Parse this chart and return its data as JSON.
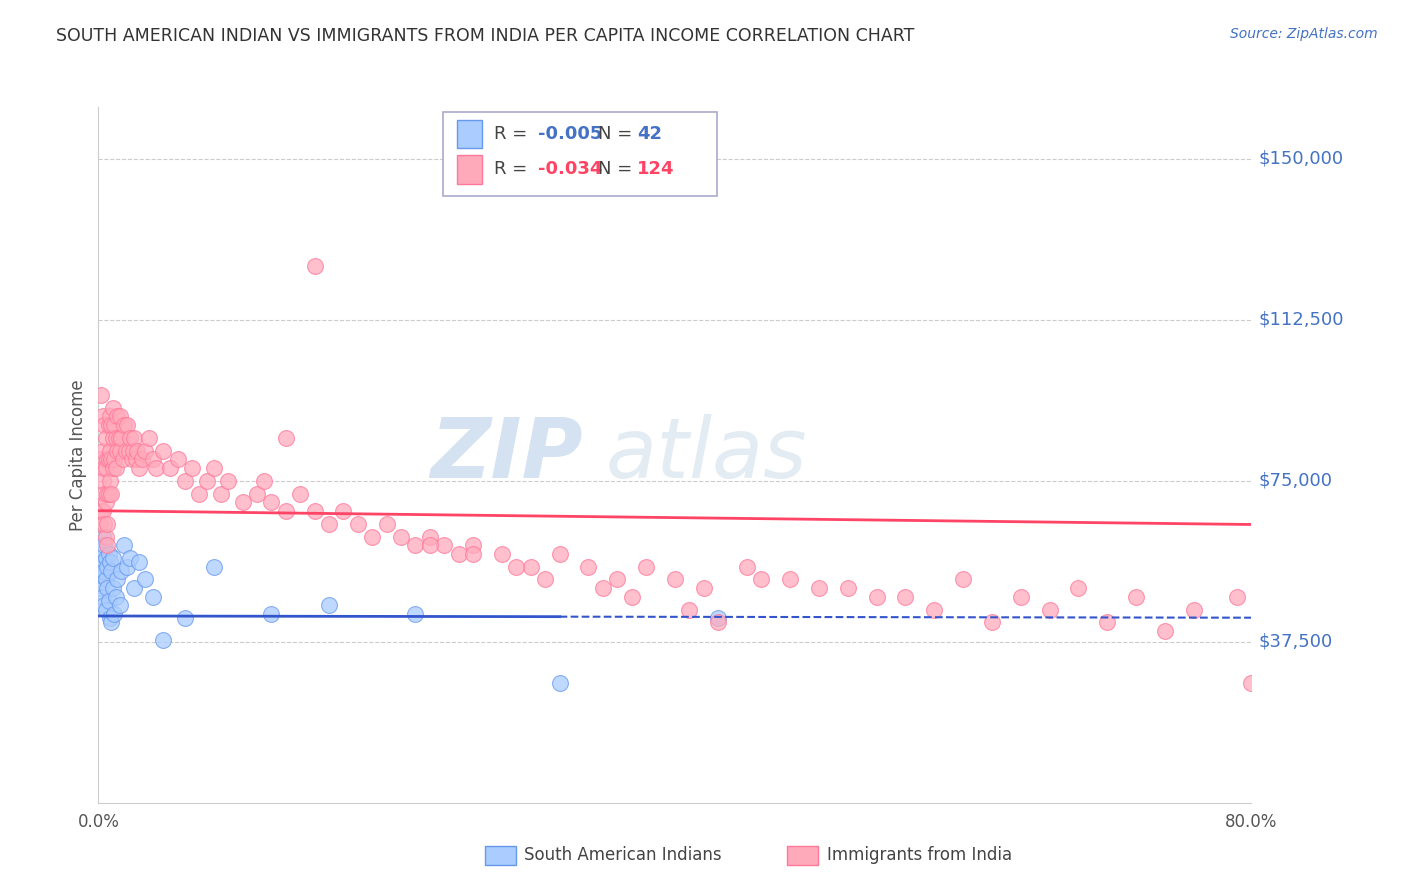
{
  "title": "SOUTH AMERICAN INDIAN VS IMMIGRANTS FROM INDIA PER CAPITA INCOME CORRELATION CHART",
  "source": "Source: ZipAtlas.com",
  "ylabel": "Per Capita Income",
  "yticks": [
    0,
    37500,
    75000,
    112500,
    150000
  ],
  "ytick_labels": [
    "",
    "$37,500",
    "$75,000",
    "$112,500",
    "$150,000"
  ],
  "ylim": [
    0,
    162000
  ],
  "xlim": [
    0.0,
    0.8
  ],
  "background_color": "#ffffff",
  "watermark_text": "ZIPatlas",
  "blue_x": [
    0.001,
    0.002,
    0.002,
    0.003,
    0.003,
    0.003,
    0.004,
    0.004,
    0.004,
    0.005,
    0.005,
    0.005,
    0.006,
    0.006,
    0.007,
    0.007,
    0.008,
    0.008,
    0.009,
    0.009,
    0.01,
    0.01,
    0.011,
    0.012,
    0.013,
    0.015,
    0.016,
    0.018,
    0.02,
    0.022,
    0.025,
    0.028,
    0.032,
    0.038,
    0.045,
    0.06,
    0.08,
    0.12,
    0.16,
    0.22,
    0.32,
    0.43
  ],
  "blue_y": [
    50000,
    58000,
    53000,
    62000,
    56000,
    48000,
    60000,
    54000,
    46000,
    57000,
    52000,
    45000,
    55000,
    50000,
    58000,
    47000,
    56000,
    43000,
    54000,
    42000,
    57000,
    50000,
    44000,
    48000,
    52000,
    46000,
    54000,
    60000,
    55000,
    57000,
    50000,
    56000,
    52000,
    48000,
    38000,
    43000,
    55000,
    44000,
    46000,
    44000,
    28000,
    43000
  ],
  "pink_x": [
    0.001,
    0.002,
    0.002,
    0.002,
    0.003,
    0.003,
    0.003,
    0.003,
    0.004,
    0.004,
    0.004,
    0.004,
    0.005,
    0.005,
    0.005,
    0.005,
    0.006,
    0.006,
    0.006,
    0.006,
    0.007,
    0.007,
    0.007,
    0.008,
    0.008,
    0.008,
    0.009,
    0.009,
    0.009,
    0.01,
    0.01,
    0.01,
    0.011,
    0.011,
    0.012,
    0.012,
    0.013,
    0.013,
    0.014,
    0.015,
    0.015,
    0.016,
    0.017,
    0.018,
    0.019,
    0.02,
    0.021,
    0.022,
    0.023,
    0.024,
    0.025,
    0.026,
    0.027,
    0.028,
    0.03,
    0.032,
    0.035,
    0.038,
    0.04,
    0.045,
    0.05,
    0.055,
    0.06,
    0.065,
    0.07,
    0.075,
    0.08,
    0.085,
    0.09,
    0.1,
    0.11,
    0.115,
    0.12,
    0.13,
    0.14,
    0.15,
    0.16,
    0.17,
    0.18,
    0.19,
    0.2,
    0.21,
    0.22,
    0.23,
    0.24,
    0.25,
    0.26,
    0.28,
    0.3,
    0.32,
    0.34,
    0.36,
    0.38,
    0.4,
    0.42,
    0.45,
    0.48,
    0.52,
    0.56,
    0.6,
    0.64,
    0.68,
    0.72,
    0.76,
    0.79,
    0.8,
    0.46,
    0.5,
    0.54,
    0.58,
    0.62,
    0.66,
    0.7,
    0.74,
    0.23,
    0.26,
    0.29,
    0.31,
    0.35,
    0.37,
    0.41,
    0.43,
    0.13,
    0.15
  ],
  "pink_y": [
    65000,
    80000,
    95000,
    68000,
    90000,
    82000,
    75000,
    68000,
    88000,
    78000,
    72000,
    65000,
    85000,
    78000,
    70000,
    62000,
    80000,
    72000,
    65000,
    60000,
    88000,
    80000,
    72000,
    90000,
    82000,
    75000,
    88000,
    80000,
    72000,
    92000,
    85000,
    78000,
    88000,
    80000,
    85000,
    78000,
    90000,
    82000,
    85000,
    90000,
    82000,
    85000,
    80000,
    88000,
    82000,
    88000,
    82000,
    85000,
    80000,
    82000,
    85000,
    80000,
    82000,
    78000,
    80000,
    82000,
    85000,
    80000,
    78000,
    82000,
    78000,
    80000,
    75000,
    78000,
    72000,
    75000,
    78000,
    72000,
    75000,
    70000,
    72000,
    75000,
    70000,
    68000,
    72000,
    68000,
    65000,
    68000,
    65000,
    62000,
    65000,
    62000,
    60000,
    62000,
    60000,
    58000,
    60000,
    58000,
    55000,
    58000,
    55000,
    52000,
    55000,
    52000,
    50000,
    55000,
    52000,
    50000,
    48000,
    52000,
    48000,
    50000,
    48000,
    45000,
    48000,
    28000,
    52000,
    50000,
    48000,
    45000,
    42000,
    45000,
    42000,
    40000,
    60000,
    58000,
    55000,
    52000,
    50000,
    48000,
    45000,
    42000,
    85000,
    125000
  ],
  "trend_blue_intercept": 43500,
  "trend_blue_slope": -500,
  "trend_blue_x_solid_end": 0.32,
  "trend_pink_intercept": 68000,
  "trend_pink_slope": -4000,
  "trend_pink_x_end": 0.8,
  "legend_blue_R": "-0.005",
  "legend_blue_N": "42",
  "legend_pink_R": "-0.034",
  "legend_pink_N": "124"
}
